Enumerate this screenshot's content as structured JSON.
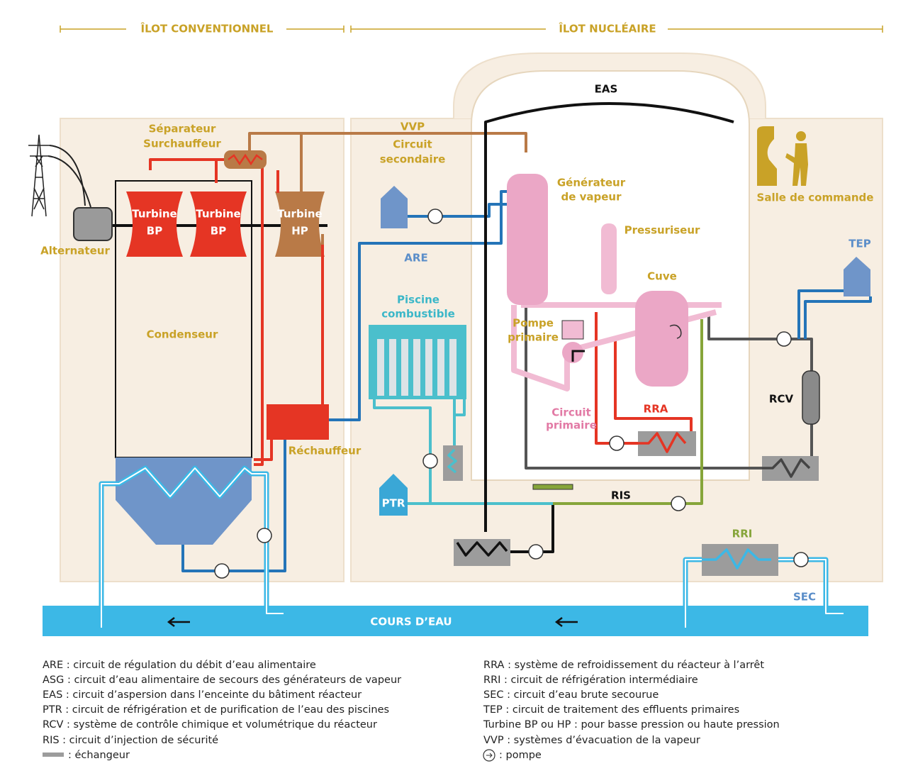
{
  "header": {
    "conventional": "ÎLOT CONVENTIONNEL",
    "nuclear": "ÎLOT NUCLÉAIRE"
  },
  "labels": {
    "separator": [
      "Séparateur",
      "Surchauffeur"
    ],
    "vvp": "VVP",
    "secondary": [
      "Circuit",
      "secondaire"
    ],
    "eas": "EAS",
    "steam_generator": [
      "Générateur",
      "de vapeur"
    ],
    "control_room": "Salle de commande",
    "turbines": [
      {
        "name": "Turbine",
        "type": "BP"
      },
      {
        "name": "Turbine",
        "type": "BP"
      },
      {
        "name": "Turbine",
        "type": "HP"
      }
    ],
    "alternator": "Alternateur",
    "pressurizer": "Pressuriseur",
    "are": "ARE",
    "tep": "TEP",
    "pool": [
      "Piscine",
      "combustible"
    ],
    "vessel": "Cuve",
    "condenser": "Condenseur",
    "primary_pump": [
      "Pompe",
      "primaire"
    ],
    "rcv": "RCV",
    "primary_circuit": [
      "Circuit",
      "primaire"
    ],
    "rra": "RRA",
    "reheater": "Réchauffeur",
    "ptr": "PTR",
    "ris": "RIS",
    "rri": "RRI",
    "sec": "SEC",
    "river": "COURS D’EAU"
  },
  "legend": {
    "left": [
      "ARE : circuit de régulation du débit d’eau alimentaire",
      "ASG : circuit d’eau alimentaire de secours des générateurs de vapeur",
      "EAS : circuit d’aspersion dans l’enceinte du bâtiment réacteur",
      "PTR : circuit de réfrigération et de purification de l’eau des piscines",
      "RCV : système de contrôle chimique et volumétrique du réacteur",
      "RIS : circuit d’injection de sécurité"
    ],
    "exchanger": ": échangeur",
    "right": [
      "RRA : système de refroidissement du réacteur à l’arrêt",
      "RRI : circuit de réfrigération intermédiaire",
      "SEC : circuit d’eau brute secourue",
      "TEP : circuit de traitement des effluents primaires",
      "Turbine BP ou HP : pour basse pression ou haute pression",
      "VVP : systèmes d’évacuation de la vapeur"
    ],
    "pump": ": pompe"
  }
}
